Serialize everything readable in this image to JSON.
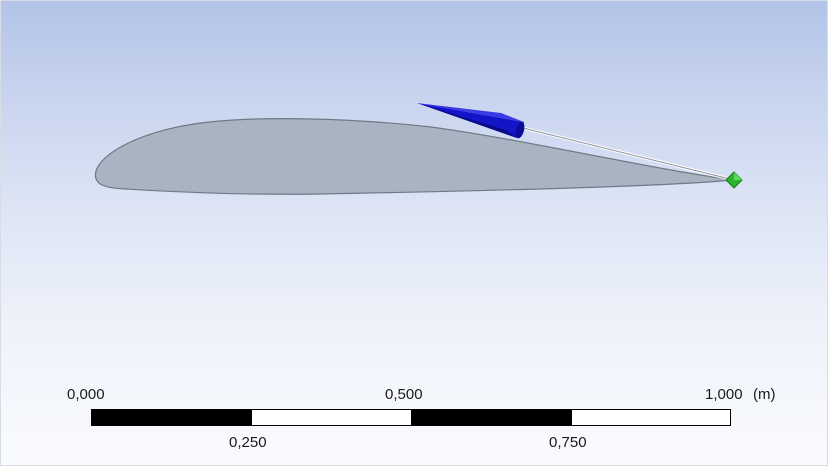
{
  "viewport": {
    "background_top": "#b3c4e8",
    "background_bottom": "#fafbfe"
  },
  "model": {
    "airfoil_fill": "#a9b4c2",
    "airfoil_outline": "#6f7a86",
    "arrow_color": "#1010cc",
    "vertex_marker_color": "#2bb32b",
    "arrow_icon": "direction-arrow-icon",
    "vertex_icon": "vertex-marker-icon"
  },
  "scale": {
    "labels_top": [
      "0,000",
      "0,500",
      "1,000"
    ],
    "labels_bottom": [
      "0,250",
      "0,750"
    ],
    "unit": "(m)"
  }
}
